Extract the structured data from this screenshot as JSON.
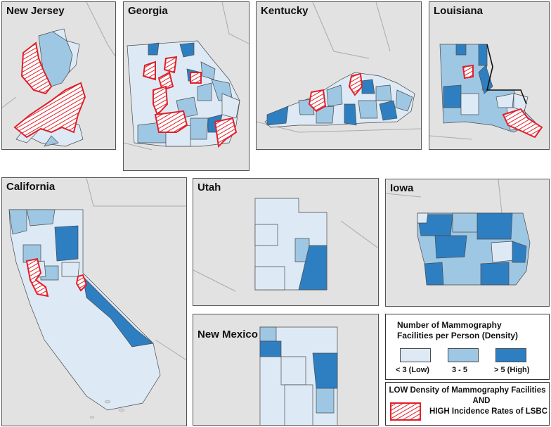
{
  "panels": {
    "new_jersey": {
      "title": "New Jersey"
    },
    "georgia": {
      "title": "Georgia"
    },
    "kentucky": {
      "title": "Kentucky"
    },
    "louisiana": {
      "title": "Louisiana"
    },
    "california": {
      "title": "California"
    },
    "utah": {
      "title": "Utah"
    },
    "iowa": {
      "title": "Iowa"
    },
    "new_mexico": {
      "title": "New Mexico"
    }
  },
  "legend": {
    "title_line1": "Number of Mammography",
    "title_line2": "Facilities per Person (Density)",
    "classes": [
      {
        "label": "< 3  (Low)",
        "color": "#ddeaf6"
      },
      {
        "label": "3 - 5",
        "color": "#9ec7e4"
      },
      {
        "label": "> 5  (High)",
        "color": "#2e7fc1"
      }
    ]
  },
  "overlay_legend": {
    "line1": "LOW Density of Mammography Facilities",
    "line2": "AND",
    "line3": "HIGH Incidence Rates of LSBC",
    "hatch_color": "#e0202a"
  },
  "colors": {
    "background_land": "#e2e2e2",
    "county_border": "#4a4a4a"
  }
}
